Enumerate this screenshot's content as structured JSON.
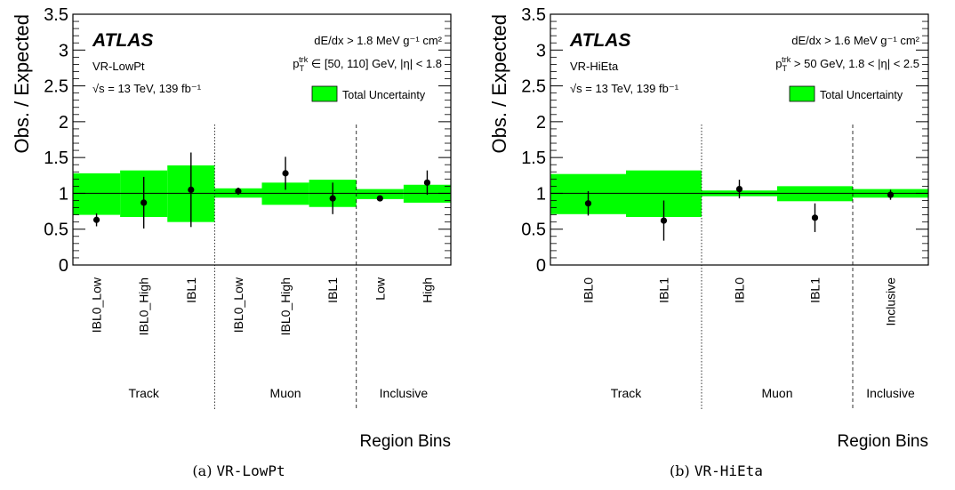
{
  "colors": {
    "band": "#00ff00",
    "band_edge": "#009900",
    "frame": "#000000",
    "points": "#000000"
  },
  "chart_data": [
    {
      "type": "scatter",
      "panel_label": "(a)",
      "panel_name": "VR-LowPt",
      "ylabel": "Obs. / Expected",
      "xlabel": "Region Bins",
      "ylim": [
        0,
        3.5
      ],
      "yticks": [
        "0",
        "0.5",
        "1",
        "1.5",
        "2",
        "2.5",
        "3",
        "3.5"
      ],
      "reference_line": 1,
      "atlas_label": "ATLAS",
      "region_label": "VR-LowPt",
      "energy_label": "√s = 13 TeV, 139 fb⁻¹",
      "selection_lines": [
        "dE/dx > 1.8 MeV g⁻¹ cm²",
        "p_T^trk ∈ [50, 110] GeV, |η| < 1.8"
      ],
      "legend": {
        "label": "Total Uncertainty",
        "placement": "top-right"
      },
      "categories": [
        "IBL0_Low",
        "IBL0_High",
        "IBL1",
        "IBL0_Low",
        "IBL0_High",
        "IBL1",
        "Low",
        "High"
      ],
      "groups": [
        {
          "name": "Track",
          "count": 3
        },
        {
          "name": "Muon",
          "count": 3
        },
        {
          "name": "Inclusive",
          "count": 2
        }
      ],
      "group_separator_styles": [
        "dotted",
        "dashed"
      ],
      "values": [
        0.63,
        0.87,
        1.05,
        1.03,
        1.28,
        0.93,
        0.93,
        1.15
      ],
      "errors": [
        0.09,
        0.36,
        0.52,
        0.05,
        0.23,
        0.22,
        0.03,
        0.17
      ],
      "band_low": [
        0.7,
        0.67,
        0.6,
        0.94,
        0.84,
        0.81,
        0.92,
        0.87
      ],
      "band_high": [
        1.28,
        1.32,
        1.39,
        1.07,
        1.15,
        1.19,
        1.06,
        1.12
      ]
    },
    {
      "type": "scatter",
      "panel_label": "(b)",
      "panel_name": "VR-HiEta",
      "ylabel": "Obs. / Expected",
      "xlabel": "Region Bins",
      "ylim": [
        0,
        3.5
      ],
      "yticks": [
        "0",
        "0.5",
        "1",
        "1.5",
        "2",
        "2.5",
        "3",
        "3.5"
      ],
      "reference_line": 1,
      "atlas_label": "ATLAS",
      "region_label": "VR-HiEta",
      "energy_label": "√s = 13 TeV, 139 fb⁻¹",
      "selection_lines": [
        "dE/dx > 1.6 MeV g⁻¹ cm²",
        "p_T^trk > 50 GeV, 1.8 < |η| < 2.5"
      ],
      "legend": {
        "label": "Total Uncertainty",
        "placement": "top-right"
      },
      "categories": [
        "IBL0",
        "IBL1",
        "IBL0",
        "IBL1",
        "Inclusive"
      ],
      "groups": [
        {
          "name": "Track",
          "count": 2
        },
        {
          "name": "Muon",
          "count": 2
        },
        {
          "name": "Inclusive",
          "count": 1
        }
      ],
      "group_separator_styles": [
        "dotted",
        "dashed"
      ],
      "values": [
        0.86,
        0.62,
        1.06,
        0.66,
        0.98
      ],
      "errors": [
        0.17,
        0.28,
        0.13,
        0.2,
        0.07
      ],
      "band_low": [
        0.71,
        0.67,
        0.96,
        0.89,
        0.94
      ],
      "band_high": [
        1.27,
        1.32,
        1.04,
        1.1,
        1.06
      ]
    }
  ]
}
